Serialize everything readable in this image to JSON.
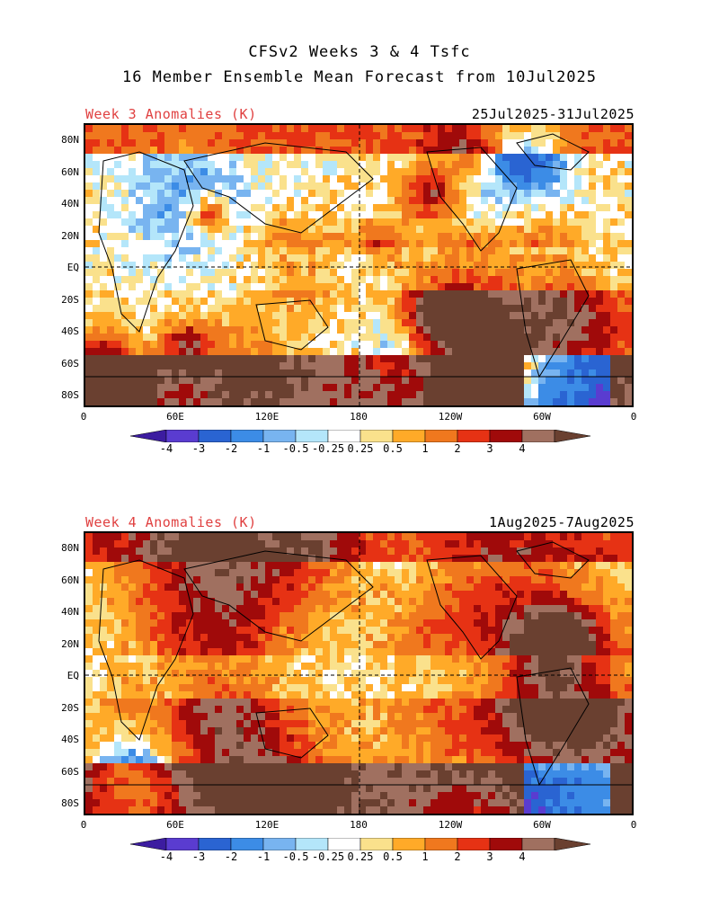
{
  "title_line1": "CFSv2 Weeks 3 & 4 Tsfc",
  "title_line2": "16 Member Ensemble Mean Forecast from 10Jul2025",
  "panels": [
    {
      "label": "Week 3 Anomalies (K)",
      "dates": "25Jul2025-31Jul2025"
    },
    {
      "label": "Week 4 Anomalies (K)",
      "dates": "1Aug2025-7Aug2025"
    }
  ],
  "lat_labels": [
    "80N",
    "60N",
    "40N",
    "20N",
    "EQ",
    "20S",
    "40S",
    "60S",
    "80S"
  ],
  "lon_labels": [
    "0",
    "60E",
    "120E",
    "180",
    "120W",
    "60W",
    "0"
  ],
  "colorbar": {
    "labels": [
      "-4",
      "-3",
      "-2",
      "-1",
      "-0.5",
      "-0.25",
      "0.25",
      "0.5",
      "1",
      "2",
      "3",
      "4"
    ],
    "colors": [
      "#3c1ca0",
      "#5a3cd0",
      "#2a64d2",
      "#3c8ce6",
      "#78b4f0",
      "#b4e6fa",
      "#ffffff",
      "#fae18c",
      "#ffaa28",
      "#f0781e",
      "#e63214",
      "#a00a0a",
      "#a07060",
      "#6a4030"
    ]
  }
}
